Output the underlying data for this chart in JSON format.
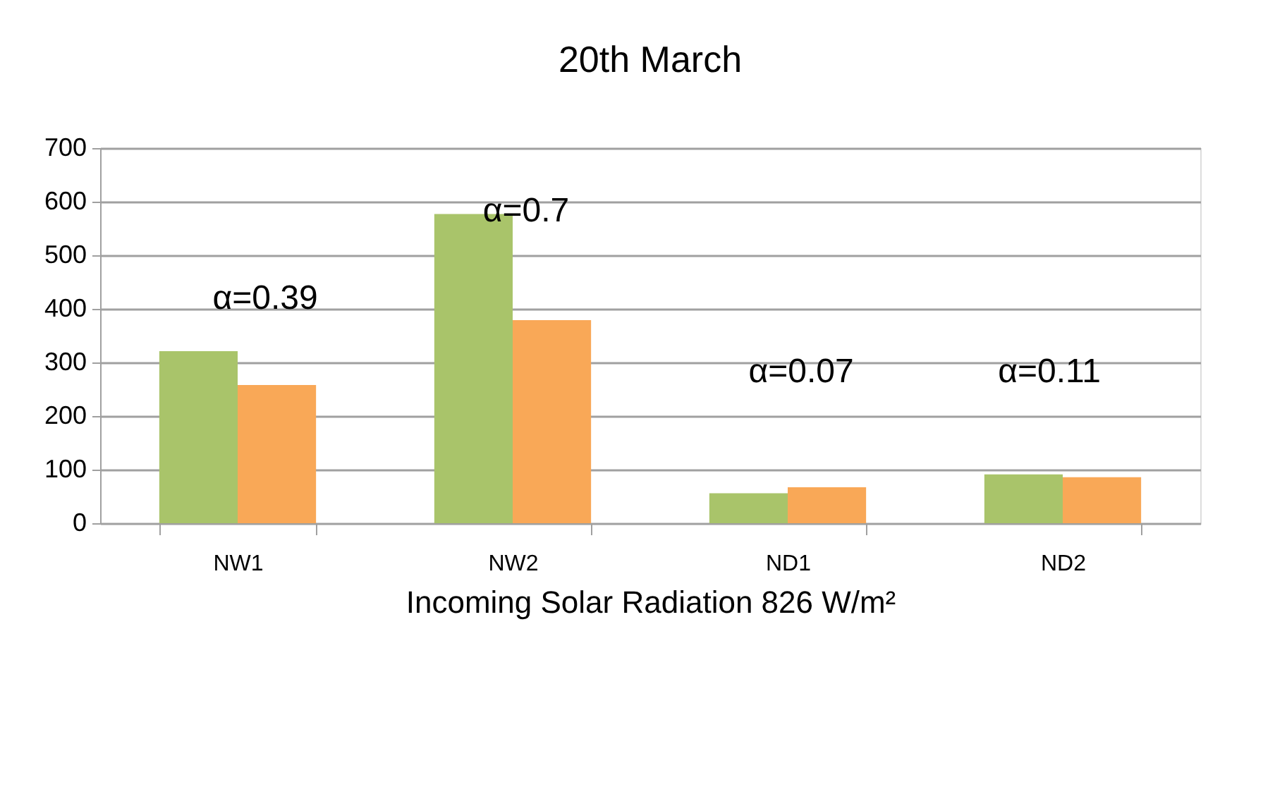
{
  "chart_data": {
    "type": "bar",
    "title": "20th March",
    "xlabel": "Incoming Solar Radiation 826 W/m²",
    "categories": [
      "NW1",
      "NW2",
      "ND1",
      "ND2"
    ],
    "series": [
      {
        "color": "#a9c46a",
        "values": [
          321,
          577,
          56,
          91
        ]
      },
      {
        "color": "#f9a857",
        "values": [
          258,
          379,
          67,
          86
        ]
      }
    ],
    "ylim": [
      0,
      700
    ],
    "yticks": [
      0,
      100,
      200,
      300,
      400,
      500,
      600,
      700
    ],
    "grid": "y",
    "legend": false,
    "annotations": [
      "α=0.39",
      "α=0.7",
      "α=0.07",
      "α=0.11"
    ]
  }
}
